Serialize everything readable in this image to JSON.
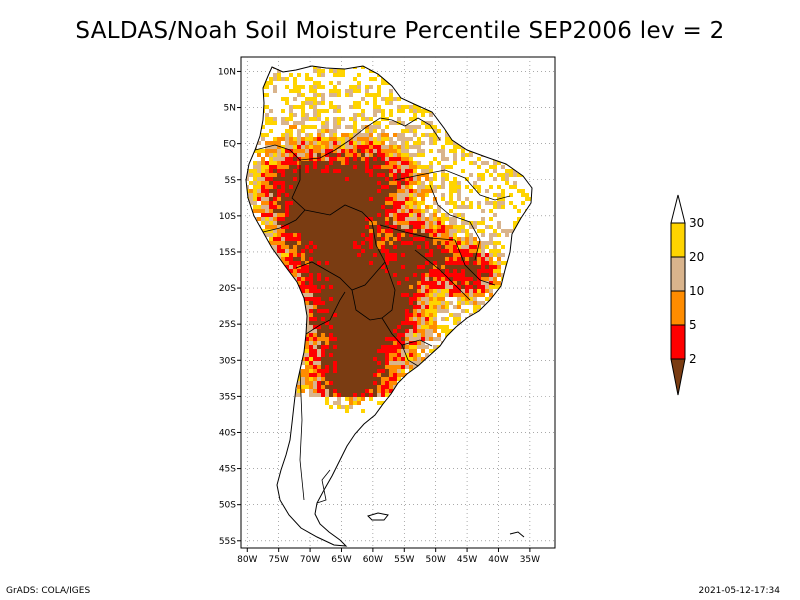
{
  "title": "SALDAS/Noah Soil Moisture Percentile SEP2006 lev = 2",
  "footer": {
    "left": "GrADS: COLA/IGES",
    "right": "2021-05-12-17:34"
  },
  "map": {
    "lon_range": [
      -81,
      -31
    ],
    "lat_range": [
      -56,
      12
    ],
    "lat_ticks": [
      "10N",
      "5N",
      "EQ",
      "5S",
      "10S",
      "15S",
      "20S",
      "25S",
      "30S",
      "35S",
      "40S",
      "45S",
      "50S",
      "55S"
    ],
    "lon_ticks": [
      "80W",
      "75W",
      "70W",
      "65W",
      "60W",
      "55W",
      "50W",
      "45W",
      "40W",
      "35W"
    ],
    "grid": true
  },
  "colorbar": {
    "classes": [
      {
        "color": "#7a3c12",
        "range": "<2"
      },
      {
        "color": "#ff0000",
        "range": "2-5"
      },
      {
        "color": "#ff8c00",
        "range": "5-10"
      },
      {
        "color": "#d9b48c",
        "range": "10-20"
      },
      {
        "color": "#ffd400",
        "range": "20-30"
      },
      {
        "color": "#ffffff",
        "range": ">30"
      }
    ],
    "labels": [
      "2",
      "5",
      "10",
      "20",
      "30"
    ]
  },
  "legend": {
    "colors": {
      "dark_brown": "#7a3c12",
      "red": "#ff0000",
      "orange": "#ff8c00",
      "tan": "#d9b48c",
      "yellow": "#ffd400"
    }
  }
}
